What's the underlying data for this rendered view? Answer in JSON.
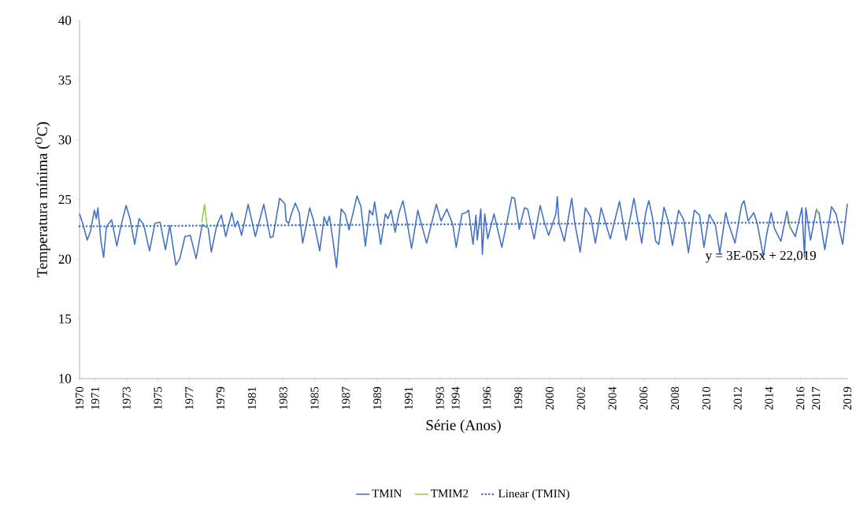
{
  "chart_data": {
    "type": "line",
    "xlabel": "Série (Anos)",
    "ylabel": "Temperatura mínima ($^{O}$C)",
    "xlim": [
      1970,
      2019
    ],
    "ylim": [
      10,
      40
    ],
    "xticks": [
      1970,
      1971,
      1973,
      1975,
      1977,
      1979,
      1981,
      1983,
      1985,
      1987,
      1989,
      1991,
      1993,
      1994,
      1996,
      1998,
      2000,
      2002,
      2004,
      2006,
      2008,
      2010,
      2012,
      2014,
      2016,
      2017,
      2019
    ],
    "yticks": [
      10,
      15,
      20,
      25,
      30,
      35,
      40
    ],
    "grid": false,
    "legend": "bottom",
    "marker": "none",
    "annotations": [
      "y = 3E-05x + 22,019"
    ],
    "series": [
      {
        "name": "TMIN",
        "color": "#4472c4",
        "line_style": "solid",
        "x": [
          1970.0,
          1970.2,
          1970.49,
          1970.7,
          1970.95,
          1971.07,
          1971.17,
          1971.37,
          1971.54,
          1971.71,
          1972.05,
          1972.38,
          1972.63,
          1972.97,
          1973.22,
          1973.52,
          1973.8,
          1974.09,
          1974.47,
          1974.81,
          1975.14,
          1975.48,
          1975.76,
          1976.15,
          1976.4,
          1976.73,
          1977.07,
          1977.44,
          1977.83,
          1978.21,
          1978.41,
          1978.75,
          1979.05,
          1979.33,
          1979.72,
          1979.92,
          1980.09,
          1980.34,
          1980.76,
          1981.22,
          1981.76,
          1982.18,
          1982.35,
          1982.77,
          1983.1,
          1983.19,
          1983.35,
          1983.52,
          1983.77,
          1984.02,
          1984.24,
          1984.69,
          1984.94,
          1985.33,
          1985.61,
          1985.78,
          1985.95,
          1986.17,
          1986.4,
          1986.7,
          1986.95,
          1987.2,
          1987.71,
          1987.96,
          1988.24,
          1988.51,
          1988.71,
          1988.83,
          1989.22,
          1989.52,
          1989.68,
          1989.88,
          1990.14,
          1990.39,
          1990.64,
          1990.89,
          1991.19,
          1991.59,
          1991.76,
          1992.15,
          1992.77,
          1993.07,
          1993.44,
          1993.82,
          1994.04,
          1994.41,
          1994.66,
          1994.83,
          1995.11,
          1995.3,
          1995.38,
          1995.61,
          1995.71,
          1995.86,
          1996.05,
          1996.45,
          1996.95,
          1997.59,
          1997.76,
          1998.06,
          1998.39,
          1998.6,
          1999.01,
          1999.4,
          1999.68,
          1999.94,
          2000.4,
          2000.49,
          2000.6,
          2000.94,
          2001.41,
          2001.61,
          2001.95,
          2002.28,
          2002.62,
          2002.92,
          2003.29,
          2003.87,
          2004.46,
          2004.88,
          2005.38,
          2005.88,
          2006.13,
          2006.33,
          2006.55,
          2006.77,
          2006.97,
          2007.3,
          2007.61,
          2007.84,
          2008.23,
          2008.56,
          2008.86,
          2009.23,
          2009.57,
          2009.85,
          2010.19,
          2010.57,
          2010.86,
          2011.24,
          2011.41,
          2011.83,
          2012.25,
          2012.41,
          2012.67,
          2013.03,
          2013.25,
          2013.64,
          2013.84,
          2014.14,
          2014.34,
          2014.76,
          2015.14,
          2015.34,
          2015.68,
          2016.1,
          2016.27,
          2016.35,
          2016.65,
          2017.02,
          2017.19,
          2017.56,
          2017.99,
          2018.28,
          2018.7,
          2019.0
        ],
        "values": [
          23.8,
          23.0,
          21.6,
          22.35,
          24.1,
          23.4,
          24.3,
          21.5,
          20.15,
          22.7,
          23.3,
          21.1,
          22.7,
          24.5,
          23.4,
          21.25,
          23.4,
          22.9,
          20.7,
          23.0,
          23.1,
          20.8,
          22.8,
          19.5,
          20.05,
          21.9,
          22.0,
          20.05,
          22.9,
          22.6,
          20.6,
          22.8,
          23.7,
          21.9,
          23.9,
          22.7,
          23.2,
          22.0,
          24.6,
          21.9,
          24.6,
          21.8,
          21.9,
          25.1,
          24.65,
          23.2,
          23.0,
          23.8,
          24.7,
          23.9,
          21.35,
          24.3,
          23.2,
          20.7,
          23.55,
          22.9,
          23.6,
          21.6,
          19.3,
          24.2,
          23.8,
          22.45,
          25.3,
          24.4,
          21.1,
          24.1,
          23.7,
          24.8,
          21.25,
          23.8,
          23.4,
          24.1,
          22.25,
          23.9,
          24.9,
          23.2,
          20.9,
          24.1,
          23.2,
          21.35,
          24.6,
          23.2,
          24.2,
          22.9,
          21.0,
          23.8,
          23.9,
          24.1,
          21.25,
          23.7,
          21.6,
          24.2,
          20.4,
          23.8,
          21.7,
          23.8,
          21.0,
          25.2,
          25.1,
          22.5,
          24.3,
          24.2,
          21.7,
          24.5,
          23.0,
          22.0,
          23.8,
          25.25,
          23.0,
          21.5,
          25.1,
          23.0,
          20.6,
          24.3,
          23.55,
          21.35,
          24.3,
          21.7,
          24.85,
          21.6,
          25.1,
          21.35,
          23.9,
          24.9,
          23.6,
          21.5,
          21.25,
          24.35,
          23.0,
          21.15,
          24.1,
          23.3,
          20.55,
          24.1,
          23.7,
          21.0,
          23.75,
          22.9,
          20.5,
          23.9,
          23.0,
          21.35,
          24.55,
          24.9,
          23.2,
          23.9,
          23.0,
          20.25,
          22.0,
          23.9,
          22.6,
          21.5,
          24.0,
          22.7,
          21.9,
          24.3,
          20.15,
          24.3,
          21.6,
          24.1,
          23.9,
          20.8,
          24.4,
          23.8,
          21.25,
          24.65
        ]
      },
      {
        "name": "TMIM2",
        "color": "#92d050",
        "line_style": "solid",
        "x": [
          1977.8,
          1977.98,
          1978.15,
          1978.2,
          2015.14,
          2015.34,
          2015.4,
          2017.02,
          2017.15
        ],
        "values": [
          23.1,
          24.6,
          22.6,
          null,
          23.55,
          22.6,
          null,
          24.3,
          23.8
        ]
      },
      {
        "name": "Linear (TMIN)",
        "color": "#4472c4",
        "line_style": "dotted",
        "x": [
          1970,
          2019
        ],
        "values": [
          22.75,
          23.1
        ]
      }
    ]
  }
}
